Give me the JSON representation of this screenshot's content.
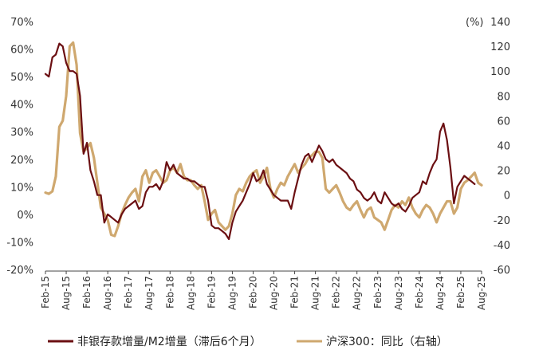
{
  "chart_data": {
    "type": "line",
    "y_left": {
      "range": [
        -20,
        70
      ],
      "ticks": [
        "70%",
        "60%",
        "50%",
        "40%",
        "30%",
        "20%",
        "10%",
        "0%",
        "-10%",
        "-20%"
      ]
    },
    "y_right": {
      "unit_label": "(%)",
      "range": [
        -60,
        140
      ],
      "ticks": [
        "140",
        "120",
        "100",
        "80",
        "60",
        "40",
        "20",
        "0",
        "-20",
        "-40",
        "-60"
      ]
    },
    "x_ticks": [
      "Feb-15",
      "Aug-15",
      "Feb-16",
      "Aug-16",
      "Feb-17",
      "Aug-17",
      "Feb-18",
      "Aug-18",
      "Feb-19",
      "Aug-19",
      "Feb-20",
      "Aug-20",
      "Feb-21",
      "Aug-21",
      "Feb-22",
      "Aug-22",
      "Feb-23",
      "Aug-23",
      "Feb-24",
      "Aug-24",
      "Feb-25",
      "Aug-25"
    ],
    "grid": false,
    "legend_position": "bottom",
    "series": [
      {
        "name": "非银存款增量/M2增量（滞后6个月）",
        "axis": "left",
        "color": "#6b0f12",
        "points": [
          [
            "2015-02",
            51
          ],
          [
            "2015-03",
            50
          ],
          [
            "2015-04",
            57
          ],
          [
            "2015-05",
            58
          ],
          [
            "2015-06",
            62
          ],
          [
            "2015-07",
            61
          ],
          [
            "2015-08",
            55
          ],
          [
            "2015-09",
            52
          ],
          [
            "2015-10",
            52
          ],
          [
            "2015-11",
            51
          ],
          [
            "2015-12",
            43
          ],
          [
            "2016-01",
            22
          ],
          [
            "2016-02",
            26
          ],
          [
            "2016-03",
            16
          ],
          [
            "2016-04",
            12
          ],
          [
            "2016-05",
            7
          ],
          [
            "2016-06",
            7
          ],
          [
            "2016-07",
            -3
          ],
          [
            "2016-08",
            0
          ],
          [
            "2016-09",
            -1
          ],
          [
            "2016-10",
            -2
          ],
          [
            "2016-11",
            -3
          ],
          [
            "2016-12",
            0
          ],
          [
            "2017-01",
            2
          ],
          [
            "2017-02",
            3
          ],
          [
            "2017-03",
            4
          ],
          [
            "2017-04",
            5
          ],
          [
            "2017-05",
            2
          ],
          [
            "2017-06",
            3
          ],
          [
            "2017-07",
            8
          ],
          [
            "2017-08",
            10
          ],
          [
            "2017-09",
            10
          ],
          [
            "2017-10",
            11
          ],
          [
            "2017-11",
            9
          ],
          [
            "2017-12",
            12
          ],
          [
            "2018-01",
            19
          ],
          [
            "2018-02",
            16
          ],
          [
            "2018-03",
            18
          ],
          [
            "2018-04",
            15
          ],
          [
            "2018-05",
            14
          ],
          [
            "2018-06",
            13
          ],
          [
            "2018-07",
            13
          ],
          [
            "2018-08",
            12
          ],
          [
            "2018-09",
            12
          ],
          [
            "2018-10",
            11
          ],
          [
            "2018-11",
            10
          ],
          [
            "2018-12",
            10
          ],
          [
            "2019-01",
            5
          ],
          [
            "2019-02",
            -4
          ],
          [
            "2019-03",
            -5
          ],
          [
            "2019-04",
            -5
          ],
          [
            "2019-05",
            -6
          ],
          [
            "2019-06",
            -7
          ],
          [
            "2019-07",
            -9
          ],
          [
            "2019-08",
            -3
          ],
          [
            "2019-09",
            1
          ],
          [
            "2019-10",
            3
          ],
          [
            "2019-11",
            5
          ],
          [
            "2019-12",
            8
          ],
          [
            "2020-01",
            11
          ],
          [
            "2020-02",
            15
          ],
          [
            "2020-03",
            12
          ],
          [
            "2020-04",
            13
          ],
          [
            "2020-05",
            16
          ],
          [
            "2020-06",
            11
          ],
          [
            "2020-07",
            9
          ],
          [
            "2020-08",
            7
          ],
          [
            "2020-09",
            6
          ],
          [
            "2020-10",
            5
          ],
          [
            "2020-11",
            5
          ],
          [
            "2020-12",
            5
          ],
          [
            "2021-01",
            2
          ],
          [
            "2021-02",
            8
          ],
          [
            "2021-03",
            13
          ],
          [
            "2021-04",
            18
          ],
          [
            "2021-05",
            21
          ],
          [
            "2021-06",
            22
          ],
          [
            "2021-07",
            19
          ],
          [
            "2021-08",
            22
          ],
          [
            "2021-09",
            25
          ],
          [
            "2021-10",
            23
          ],
          [
            "2021-11",
            20
          ],
          [
            "2021-12",
            19
          ],
          [
            "2022-01",
            20
          ],
          [
            "2022-02",
            18
          ],
          [
            "2022-03",
            17
          ],
          [
            "2022-04",
            16
          ],
          [
            "2022-05",
            15
          ],
          [
            "2022-06",
            13
          ],
          [
            "2022-07",
            12
          ],
          [
            "2022-08",
            9
          ],
          [
            "2022-09",
            8
          ],
          [
            "2022-10",
            6
          ],
          [
            "2022-11",
            5
          ],
          [
            "2022-12",
            6
          ],
          [
            "2023-01",
            8
          ],
          [
            "2023-02",
            5
          ],
          [
            "2023-03",
            4
          ],
          [
            "2023-04",
            8
          ],
          [
            "2023-05",
            6
          ],
          [
            "2023-06",
            4
          ],
          [
            "2023-07",
            3
          ],
          [
            "2023-08",
            4
          ],
          [
            "2023-09",
            2
          ],
          [
            "2023-10",
            1
          ],
          [
            "2023-11",
            3
          ],
          [
            "2023-12",
            6
          ],
          [
            "2024-01",
            7
          ],
          [
            "2024-02",
            8
          ],
          [
            "2024-03",
            12
          ],
          [
            "2024-04",
            11
          ],
          [
            "2024-05",
            15
          ],
          [
            "2024-06",
            18
          ],
          [
            "2024-07",
            20
          ],
          [
            "2024-08",
            30
          ],
          [
            "2024-09",
            33
          ],
          [
            "2024-10",
            27
          ],
          [
            "2024-11",
            17
          ],
          [
            "2024-12",
            4
          ],
          [
            "2025-01",
            10
          ],
          [
            "2025-02",
            12
          ],
          [
            "2025-03",
            14
          ],
          [
            "2025-04",
            13
          ],
          [
            "2025-05",
            12
          ],
          [
            "2025-06",
            11
          ]
        ]
      },
      {
        "name": "沪深300：同比（右轴）",
        "axis": "right",
        "color": "#cfa86f",
        "points": [
          [
            "2015-02",
            2
          ],
          [
            "2015-03",
            1
          ],
          [
            "2015-04",
            3
          ],
          [
            "2015-05",
            15
          ],
          [
            "2015-06",
            55
          ],
          [
            "2015-07",
            60
          ],
          [
            "2015-08",
            80
          ],
          [
            "2015-09",
            120
          ],
          [
            "2015-10",
            123
          ],
          [
            "2015-11",
            105
          ],
          [
            "2015-12",
            50
          ],
          [
            "2016-01",
            35
          ],
          [
            "2016-02",
            38
          ],
          [
            "2016-03",
            42
          ],
          [
            "2016-04",
            30
          ],
          [
            "2016-05",
            10
          ],
          [
            "2016-06",
            -10
          ],
          [
            "2016-07",
            -15
          ],
          [
            "2016-08",
            -20
          ],
          [
            "2016-09",
            -32
          ],
          [
            "2016-10",
            -33
          ],
          [
            "2016-11",
            -25
          ],
          [
            "2016-12",
            -15
          ],
          [
            "2017-01",
            -8
          ],
          [
            "2017-02",
            -2
          ],
          [
            "2017-03",
            2
          ],
          [
            "2017-04",
            5
          ],
          [
            "2017-05",
            -5
          ],
          [
            "2017-06",
            15
          ],
          [
            "2017-07",
            20
          ],
          [
            "2017-08",
            10
          ],
          [
            "2017-09",
            18
          ],
          [
            "2017-10",
            20
          ],
          [
            "2017-11",
            15
          ],
          [
            "2017-12",
            10
          ],
          [
            "2018-01",
            12
          ],
          [
            "2018-02",
            20
          ],
          [
            "2018-03",
            22
          ],
          [
            "2018-04",
            18
          ],
          [
            "2018-05",
            25
          ],
          [
            "2018-06",
            15
          ],
          [
            "2018-07",
            12
          ],
          [
            "2018-08",
            12
          ],
          [
            "2018-09",
            8
          ],
          [
            "2018-10",
            5
          ],
          [
            "2018-11",
            8
          ],
          [
            "2018-12",
            -5
          ],
          [
            "2019-01",
            -20
          ],
          [
            "2019-02",
            -15
          ],
          [
            "2019-03",
            -12
          ],
          [
            "2019-04",
            -22
          ],
          [
            "2019-05",
            -25
          ],
          [
            "2019-06",
            -28
          ],
          [
            "2019-07",
            -25
          ],
          [
            "2019-08",
            -15
          ],
          [
            "2019-09",
            0
          ],
          [
            "2019-10",
            5
          ],
          [
            "2019-11",
            3
          ],
          [
            "2019-12",
            10
          ],
          [
            "2020-01",
            15
          ],
          [
            "2020-02",
            18
          ],
          [
            "2020-03",
            20
          ],
          [
            "2020-04",
            10
          ],
          [
            "2020-05",
            15
          ],
          [
            "2020-06",
            22
          ],
          [
            "2020-07",
            5
          ],
          [
            "2020-08",
            -2
          ],
          [
            "2020-09",
            5
          ],
          [
            "2020-10",
            10
          ],
          [
            "2020-11",
            8
          ],
          [
            "2020-12",
            15
          ],
          [
            "2021-01",
            20
          ],
          [
            "2021-02",
            25
          ],
          [
            "2021-03",
            18
          ],
          [
            "2021-04",
            22
          ],
          [
            "2021-05",
            25
          ],
          [
            "2021-06",
            30
          ],
          [
            "2021-07",
            32
          ],
          [
            "2021-08",
            35
          ],
          [
            "2021-09",
            35
          ],
          [
            "2021-10",
            30
          ],
          [
            "2021-11",
            5
          ],
          [
            "2021-12",
            2
          ],
          [
            "2022-01",
            5
          ],
          [
            "2022-02",
            8
          ],
          [
            "2022-03",
            2
          ],
          [
            "2022-04",
            -5
          ],
          [
            "2022-05",
            -10
          ],
          [
            "2022-06",
            -12
          ],
          [
            "2022-07",
            -8
          ],
          [
            "2022-08",
            -5
          ],
          [
            "2022-09",
            -12
          ],
          [
            "2022-10",
            -18
          ],
          [
            "2022-11",
            -12
          ],
          [
            "2022-12",
            -10
          ],
          [
            "2023-01",
            -18
          ],
          [
            "2023-02",
            -20
          ],
          [
            "2023-03",
            -22
          ],
          [
            "2023-04",
            -28
          ],
          [
            "2023-05",
            -20
          ],
          [
            "2023-06",
            -12
          ],
          [
            "2023-07",
            -8
          ],
          [
            "2023-08",
            -10
          ],
          [
            "2023-09",
            -5
          ],
          [
            "2023-10",
            -8
          ],
          [
            "2023-11",
            -2
          ],
          [
            "2023-12",
            -10
          ],
          [
            "2024-01",
            -15
          ],
          [
            "2024-02",
            -18
          ],
          [
            "2024-03",
            -12
          ],
          [
            "2024-04",
            -8
          ],
          [
            "2024-05",
            -10
          ],
          [
            "2024-06",
            -15
          ],
          [
            "2024-07",
            -22
          ],
          [
            "2024-08",
            -15
          ],
          [
            "2024-09",
            -10
          ],
          [
            "2024-10",
            -5
          ],
          [
            "2024-11",
            -5
          ],
          [
            "2024-12",
            -15
          ],
          [
            "2025-01",
            -10
          ],
          [
            "2025-02",
            5
          ],
          [
            "2025-03",
            10
          ],
          [
            "2025-04",
            12
          ],
          [
            "2025-05",
            15
          ],
          [
            "2025-06",
            18
          ],
          [
            "2025-07",
            10
          ],
          [
            "2025-08",
            8
          ]
        ]
      }
    ]
  }
}
